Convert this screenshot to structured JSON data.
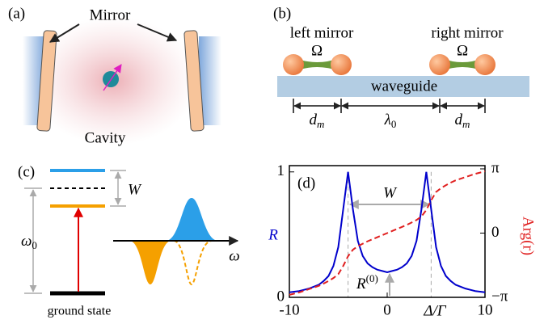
{
  "panel_a": {
    "label": "(a)",
    "mirror": "Mirror",
    "cavity": "Cavity"
  },
  "panel_b": {
    "label": "(b)",
    "left_mirror": "left mirror",
    "right_mirror": "right mirror",
    "omega_left": "Ω",
    "omega_right": "Ω",
    "waveguide": "waveguide",
    "dm_left": {
      "text": "d",
      "sub": "m"
    },
    "lambda": {
      "text": "λ",
      "sub": "0"
    },
    "dm_right": {
      "text": "d",
      "sub": "m"
    }
  },
  "panel_c": {
    "label": "(c)",
    "w": "W",
    "omega0": {
      "text": "ω",
      "sub": "0"
    },
    "omega": "ω",
    "ground": "ground state"
  },
  "chart_data": {
    "type": "line",
    "panel_label": "(d)",
    "xlabel": "Δ/Γ",
    "ylabel": "R",
    "y2label": "Arg(r)",
    "x": [
      -10,
      -9.5,
      -9,
      -8.5,
      -8,
      -7.5,
      -7,
      -6.5,
      -6,
      -5.5,
      -5,
      -4.5,
      -4,
      -3.5,
      -3,
      -2.5,
      -2,
      -1.5,
      -1,
      -0.5,
      0,
      0.5,
      1,
      1.5,
      2,
      2.5,
      3,
      3.5,
      4,
      4.5,
      5,
      5.5,
      6,
      6.5,
      7,
      7.5,
      8,
      8.5,
      9,
      9.5,
      10
    ],
    "series": [
      {
        "name": "R",
        "color": "#0000cc",
        "values": [
          0.04,
          0.045,
          0.05,
          0.06,
          0.07,
          0.085,
          0.1,
          0.13,
          0.17,
          0.25,
          0.4,
          0.7,
          1.0,
          0.7,
          0.45,
          0.33,
          0.27,
          0.24,
          0.22,
          0.21,
          0.2,
          0.21,
          0.22,
          0.24,
          0.27,
          0.33,
          0.45,
          0.7,
          1.0,
          0.7,
          0.4,
          0.25,
          0.17,
          0.13,
          0.1,
          0.085,
          0.07,
          0.06,
          0.05,
          0.045,
          0.04
        ]
      },
      {
        "name": "Arg(r)",
        "color": "#e02020",
        "axis": "y2",
        "dashed": true,
        "values": [
          -3.02,
          -2.96,
          -2.9,
          -2.82,
          -2.74,
          -2.66,
          -2.58,
          -2.47,
          -2.34,
          -2.2,
          -2.01,
          -1.61,
          -1.13,
          -0.81,
          -0.64,
          -0.52,
          -0.4,
          -0.3,
          -0.2,
          -0.1,
          0,
          0.1,
          0.2,
          0.3,
          0.4,
          0.52,
          0.64,
          0.81,
          1.13,
          1.61,
          2.01,
          2.2,
          2.34,
          2.47,
          2.58,
          2.66,
          2.74,
          2.82,
          2.9,
          2.96,
          3.02
        ]
      }
    ],
    "xlim": [
      -10,
      10
    ],
    "xticks": [
      -10,
      0,
      10
    ],
    "ylim": [
      0,
      1.05
    ],
    "yticks": [
      0,
      1
    ],
    "y2lim": [
      -3.1416,
      3.3
    ],
    "y2ticks": [
      {
        "value": -3.1416,
        "label": "−π"
      },
      0,
      {
        "value": 3.1416,
        "label": "π"
      }
    ],
    "annotations": [
      {
        "text": "W"
      },
      {
        "text": "R",
        "sup": "(0)"
      }
    ]
  }
}
